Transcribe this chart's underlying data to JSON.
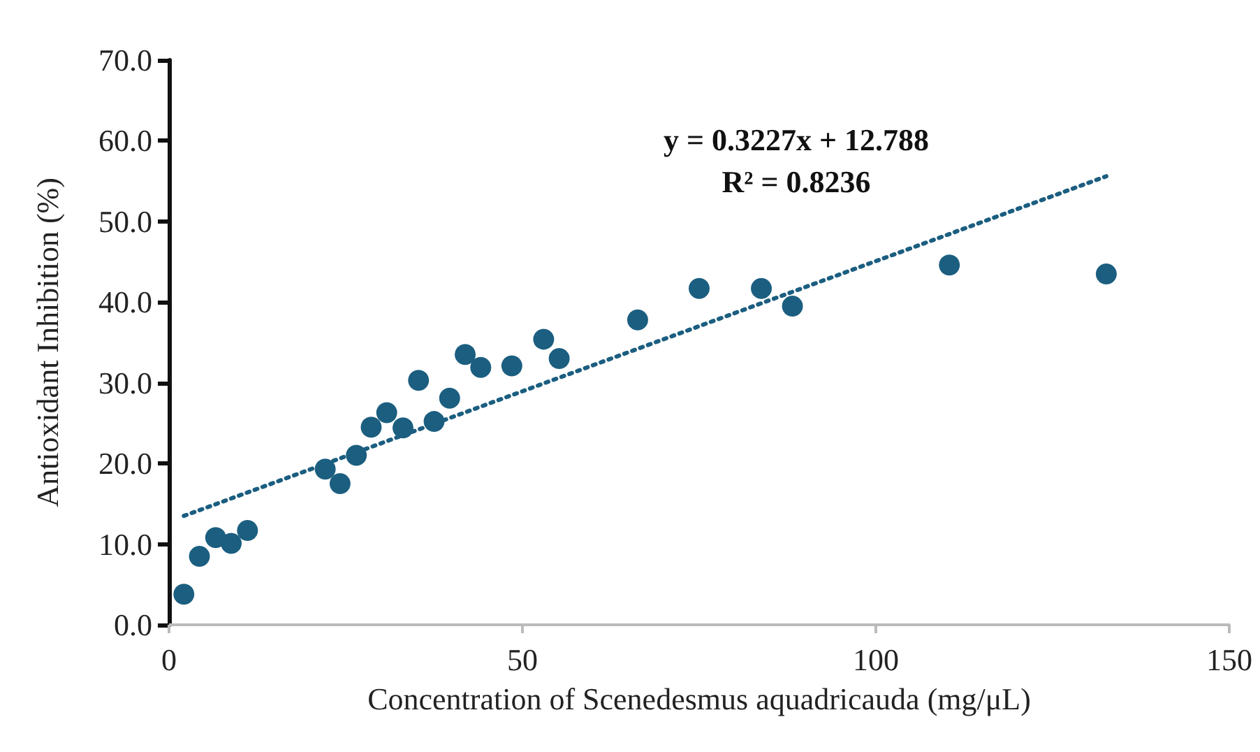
{
  "chart_data": {
    "type": "scatter",
    "xlabel": "Concentration of Scenedesmus aquadricauda (mg/μL)",
    "ylabel": "Antioxidant Inhibition (%)",
    "annotations": [
      "y = 0.3227x + 12.788\nR² = 0.8236"
    ],
    "xlim": [
      0,
      150
    ],
    "xticks": [
      0,
      50,
      100,
      150
    ],
    "ylim": [
      0,
      70
    ],
    "yticks": [
      {
        "value": 0,
        "label": "0.0"
      },
      {
        "value": 10,
        "label": "10.0"
      },
      {
        "value": 20,
        "label": "20.0"
      },
      {
        "value": 30,
        "label": "30.0"
      },
      {
        "value": 40,
        "label": "40.0"
      },
      {
        "value": 50,
        "label": "50.0"
      },
      {
        "value": 60,
        "label": "60.0"
      },
      {
        "value": 70,
        "label": "70.0"
      }
    ],
    "grid": false,
    "marker": "circle",
    "series": [
      {
        "color": "#1b5e80",
        "x": [
          2.1,
          4.3,
          6.6,
          8.8,
          11.1,
          22.1,
          24.2,
          26.5,
          28.6,
          30.8,
          33.1,
          35.3,
          37.5,
          39.7,
          41.9,
          44.1,
          48.5,
          53.0,
          55.2,
          66.3,
          75.0,
          83.8,
          88.2,
          110.4,
          132.6
        ],
        "values": [
          3.8,
          8.5,
          10.8,
          10.1,
          11.7,
          19.3,
          17.5,
          21.0,
          24.5,
          26.3,
          24.4,
          30.3,
          25.2,
          28.1,
          33.5,
          31.9,
          32.1,
          35.4,
          33.0,
          37.8,
          41.7,
          41.7,
          39.5,
          44.6,
          43.5
        ]
      },
      {
        "type": "line",
        "color": "#1b5e80",
        "line_style": "dotted",
        "marker": "none",
        "x": [
          2.1,
          132.6
        ],
        "values": [
          13.5,
          55.6
        ]
      }
    ]
  }
}
